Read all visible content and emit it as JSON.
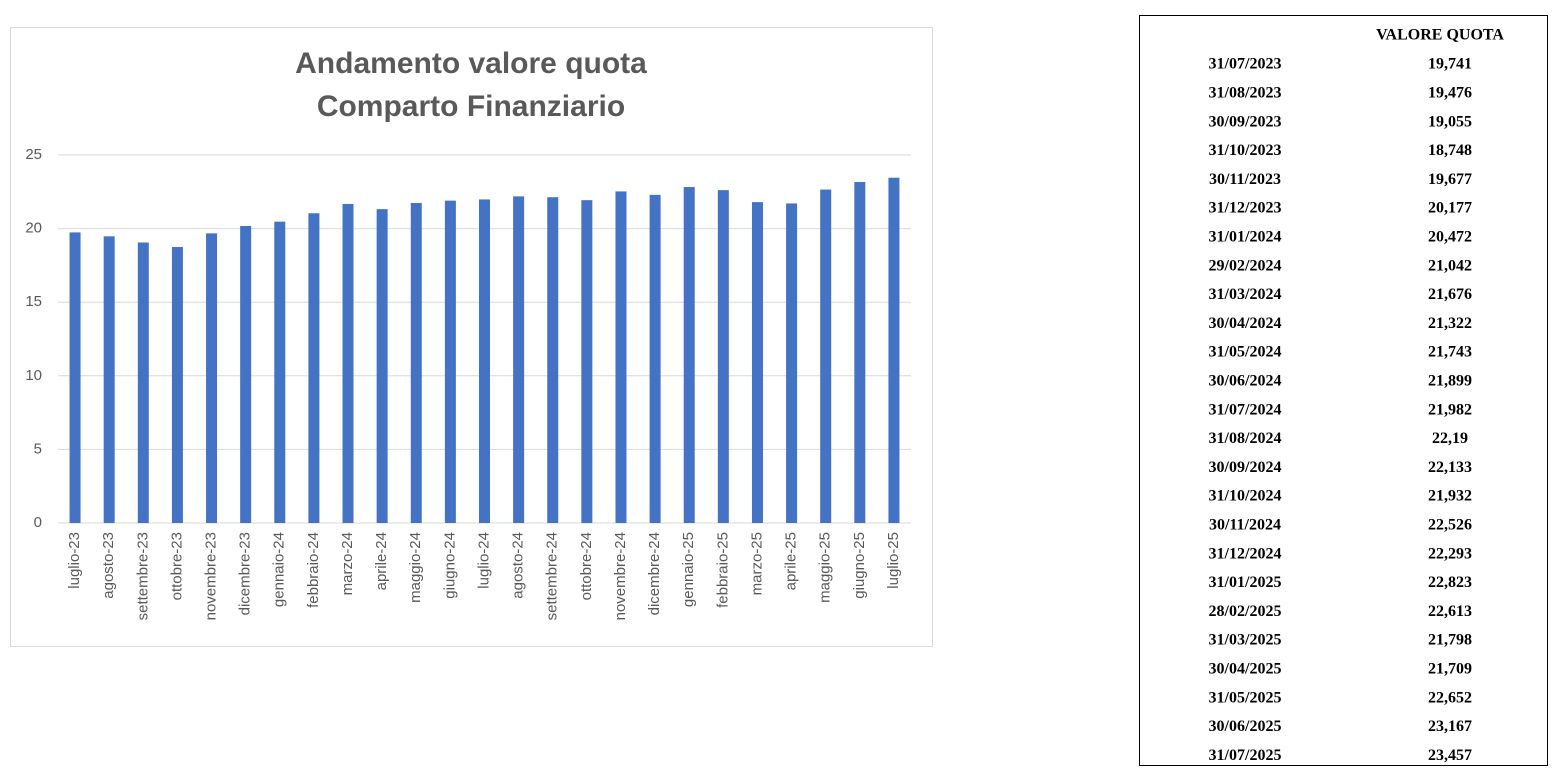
{
  "chart_data": {
    "type": "bar",
    "title": "Andamento valore quota",
    "subtitle": "Comparto Finanziario",
    "categories": [
      "luglio-23",
      "agosto-23",
      "settembre-23",
      "ottobre-23",
      "novembre-23",
      "dicembre-23",
      "gennaio-24",
      "febbraio-24",
      "marzo-24",
      "aprile-24",
      "maggio-24",
      "giugno-24",
      "luglio-24",
      "agosto-24",
      "settembre-24",
      "ottobre-24",
      "novembre-24",
      "dicembre-24",
      "gennaio-25",
      "febbraio-25",
      "marzo-25",
      "aprile-25",
      "maggio-25",
      "giugno-25",
      "luglio-25"
    ],
    "values": [
      19.741,
      19.476,
      19.055,
      18.748,
      19.677,
      20.177,
      20.472,
      21.042,
      21.676,
      21.322,
      21.743,
      21.899,
      21.982,
      22.19,
      22.133,
      21.932,
      22.526,
      22.293,
      22.823,
      22.613,
      21.798,
      21.709,
      22.652,
      23.167,
      23.457
    ],
    "color": "#4472c4",
    "ylim": [
      0,
      25
    ],
    "yticks": [
      0,
      5,
      10,
      15,
      20,
      25
    ],
    "grid": true
  },
  "table": {
    "value_header": "VALORE QUOTA",
    "rows": [
      [
        "31/07/2023",
        "19,741"
      ],
      [
        "31/08/2023",
        "19,476"
      ],
      [
        "30/09/2023",
        "19,055"
      ],
      [
        "31/10/2023",
        "18,748"
      ],
      [
        "30/11/2023",
        "19,677"
      ],
      [
        "31/12/2023",
        "20,177"
      ],
      [
        "31/01/2024",
        "20,472"
      ],
      [
        "29/02/2024",
        "21,042"
      ],
      [
        "31/03/2024",
        "21,676"
      ],
      [
        "30/04/2024",
        "21,322"
      ],
      [
        "31/05/2024",
        "21,743"
      ],
      [
        "30/06/2024",
        "21,899"
      ],
      [
        "31/07/2024",
        "21,982"
      ],
      [
        "31/08/2024",
        "22,19"
      ],
      [
        "30/09/2024",
        "22,133"
      ],
      [
        "31/10/2024",
        "21,932"
      ],
      [
        "30/11/2024",
        "22,526"
      ],
      [
        "31/12/2024",
        "22,293"
      ],
      [
        "31/01/2025",
        "22,823"
      ],
      [
        "28/02/2025",
        "22,613"
      ],
      [
        "31/03/2025",
        "21,798"
      ],
      [
        "30/04/2025",
        "21,709"
      ],
      [
        "31/05/2025",
        "22,652"
      ],
      [
        "30/06/2025",
        "23,167"
      ],
      [
        "31/07/2025",
        "23,457"
      ]
    ]
  }
}
